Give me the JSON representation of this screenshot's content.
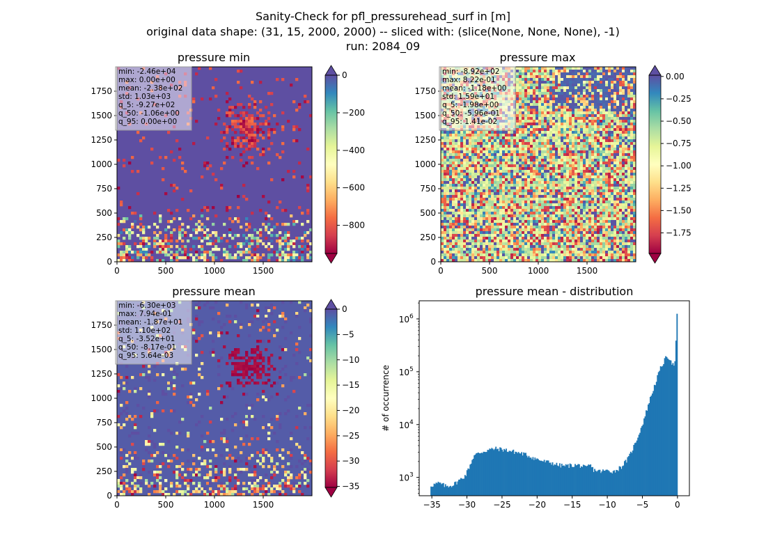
{
  "figure": {
    "title_lines": [
      "Sanity-Check for pfl_pressurehead_surf in [m]",
      "original data shape: (31, 15, 2000, 2000) -- sliced with: (slice(None, None, None), -1)",
      "run: 2084_09"
    ]
  },
  "colormap": {
    "name": "Spectral",
    "stops": [
      "#9e0142",
      "#d53e4f",
      "#f46d43",
      "#fdae61",
      "#fee08b",
      "#ffffbf",
      "#e6f598",
      "#abdda4",
      "#66c2a5",
      "#3288bd",
      "#5e4fa2"
    ]
  },
  "chart_data": [
    {
      "type": "heatmap",
      "title": "pressure min",
      "xlim": [
        0,
        2000
      ],
      "ylim": [
        0,
        2000
      ],
      "xticks": [
        0,
        500,
        1000,
        1500
      ],
      "yticks": [
        0,
        250,
        500,
        750,
        1000,
        1250,
        1500,
        1750
      ],
      "colorbar": {
        "vmin": -950,
        "vmax": 0,
        "ticks": [
          0,
          -200,
          -400,
          -600,
          -800
        ],
        "tick_labels": [
          "0",
          "−200",
          "−400",
          "−600",
          "−800"
        ],
        "extend": "both"
      },
      "dominant_value": 0,
      "stats": [
        "min: -2.46e+04",
        "max: 0.00e+00",
        "mean: -2.38e+02",
        "std: 1.03e+03",
        "q_5: -9.27e+02",
        "q_50: -1.06e+00",
        "q_95: 0.00e+00"
      ]
    },
    {
      "type": "heatmap",
      "title": "pressure max",
      "xlim": [
        0,
        2000
      ],
      "ylim": [
        0,
        2000
      ],
      "xticks": [
        0,
        500,
        1000,
        1500
      ],
      "yticks": [
        0,
        250,
        500,
        750,
        1000,
        1250,
        1500,
        1750
      ],
      "colorbar": {
        "vmin": -1.98,
        "vmax": 0.014,
        "ticks": [
          0.0,
          -0.25,
          -0.5,
          -0.75,
          -1.0,
          -1.25,
          -1.5,
          -1.75
        ],
        "tick_labels": [
          "0.00",
          "−0.25",
          "−0.50",
          "−0.75",
          "−1.00",
          "−1.25",
          "−1.50",
          "−1.75"
        ],
        "extend": "both"
      },
      "dominant_value": -0.6,
      "stats": [
        "min: -8.92e+02",
        "max: 8.22e-01",
        "mean: -1.18e+00",
        "std: 1.59e+01",
        "q_5: -1.98e+00",
        "q_50: -5.96e-01",
        "q_95: 1.41e-02"
      ]
    },
    {
      "type": "heatmap",
      "title": "pressure mean",
      "xlim": [
        0,
        2000
      ],
      "ylim": [
        0,
        2000
      ],
      "xticks": [
        0,
        500,
        1000,
        1500
      ],
      "yticks": [
        0,
        250,
        500,
        750,
        1000,
        1250,
        1500,
        1750
      ],
      "colorbar": {
        "vmin": -35.2,
        "vmax": 0.0056,
        "ticks": [
          0,
          -5,
          -10,
          -15,
          -20,
          -25,
          -30,
          -35
        ],
        "tick_labels": [
          "0",
          "−5",
          "−10",
          "−15",
          "−20",
          "−25",
          "−30",
          "−35"
        ],
        "extend": "both"
      },
      "dominant_value": -0.8,
      "stats": [
        "min: -6.30e+03",
        "max: 7.94e-01",
        "mean: -1.87e+01",
        "std: 1.10e+02",
        "q_5: -3.52e+01",
        "q_50: -8.17e-01",
        "q_95: 5.64e-03"
      ]
    },
    {
      "type": "bar",
      "title": "pressure mean - distribution",
      "ylabel": "# of occurrence",
      "xlabel": "",
      "yscale": "log",
      "xlim": [
        -36.8,
        1.7
      ],
      "ylim": [
        450,
        2200000
      ],
      "xticks": [
        -35,
        -30,
        -25,
        -20,
        -15,
        -10,
        -5,
        0
      ],
      "xtick_labels": [
        "−35",
        "−30",
        "−25",
        "−20",
        "−15",
        "−10",
        "−5",
        "0"
      ],
      "yticks": [
        1000,
        10000,
        100000,
        1000000
      ],
      "ytick_labels": [
        "10",
        "10",
        "10",
        "10"
      ],
      "ytick_exponents": [
        "3",
        "4",
        "5",
        "6"
      ],
      "bar_color": "#1f77b4",
      "x": [
        -35.2,
        -34,
        -33,
        -32,
        -31,
        -30.2,
        -29.5,
        -29,
        -28,
        -27,
        -26,
        -25,
        -24,
        -23,
        -22,
        -21,
        -20,
        -19,
        -18,
        -17,
        -16,
        -15,
        -14,
        -13,
        -12.5,
        -12,
        -11,
        -10,
        -9,
        -8,
        -7,
        -6,
        -5,
        -4,
        -3,
        -2.5,
        -2,
        -1.5,
        -1,
        -0.6,
        -0.3,
        -0.1,
        0
      ],
      "values": [
        700,
        780,
        680,
        720,
        900,
        1100,
        1800,
        2600,
        3000,
        3300,
        3500,
        3400,
        3200,
        3000,
        2800,
        2500,
        2200,
        2000,
        1900,
        1700,
        1650,
        1700,
        1700,
        1500,
        1750,
        1400,
        1300,
        1350,
        1300,
        1600,
        2300,
        4500,
        10000,
        28000,
        70000,
        110000,
        150000,
        200000,
        170000,
        130000,
        160000,
        1250000,
        1250000
      ]
    }
  ]
}
